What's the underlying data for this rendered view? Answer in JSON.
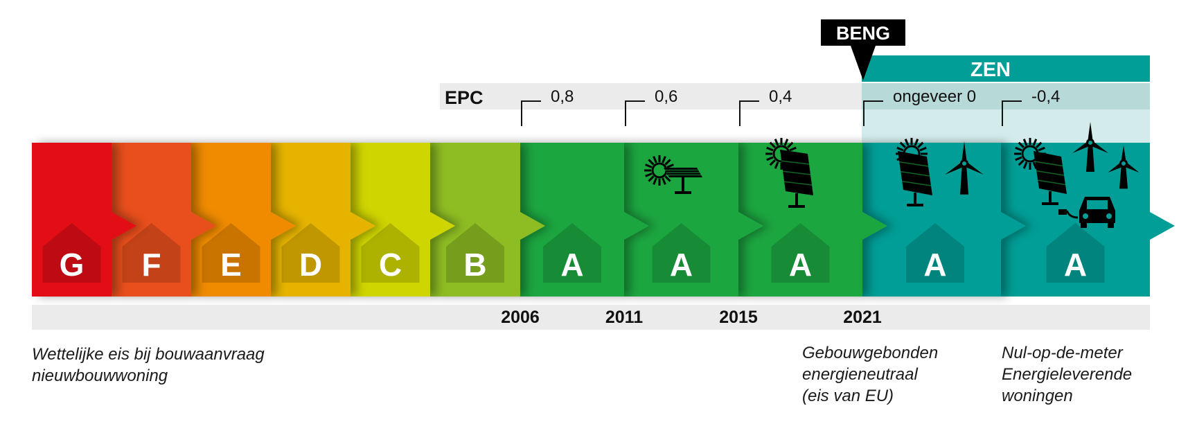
{
  "epc_label": "EPC",
  "beng_label": "BENG",
  "zen_label": "ZEN",
  "labels": [
    {
      "letter": "G",
      "fill": "#e30b17"
    },
    {
      "letter": "F",
      "fill": "#e94f1f"
    },
    {
      "letter": "E",
      "fill": "#f08b00"
    },
    {
      "letter": "D",
      "fill": "#e6b400"
    },
    {
      "letter": "C",
      "fill": "#cfd500"
    },
    {
      "letter": "B",
      "fill": "#8dbd22"
    },
    {
      "letter": "A",
      "fill": "#1ea640",
      "year": "2006",
      "epc": "0,8"
    },
    {
      "letter": "A",
      "fill": "#1ea640",
      "year": "2011",
      "epc": "0,6",
      "icons": [
        "solar-panel-icon"
      ]
    },
    {
      "letter": "A",
      "fill": "#1ea640",
      "year": "2015",
      "epc": "0,4",
      "icons": [
        "solar-panel-icon"
      ]
    },
    {
      "letter": "A",
      "fill": "#009e96",
      "year": "2021",
      "epc": "ongeveer 0",
      "icons": [
        "solar-panel-icon",
        "wind-turbine-icon"
      ]
    },
    {
      "letter": "A",
      "fill": "#009e96",
      "epc": "-0,4",
      "icons": [
        "solar-panel-icon",
        "wind-turbine-icon",
        "wind-turbine-icon",
        "electric-car-icon"
      ]
    }
  ],
  "notes": {
    "left": [
      "Wettelijke eis bij bouwaanvraag",
      "nieuwbouwwoning"
    ],
    "middle": [
      "Gebouwgebonden",
      "energieneutraal",
      "(eis van EU)"
    ],
    "right": [
      "Nul-op-de-meter",
      "Energieleverende",
      "woningen"
    ]
  },
  "colors": {
    "house": "#000000",
    "letter": "#ffffff",
    "zen": "#009e96",
    "band": "#ebebeb"
  }
}
